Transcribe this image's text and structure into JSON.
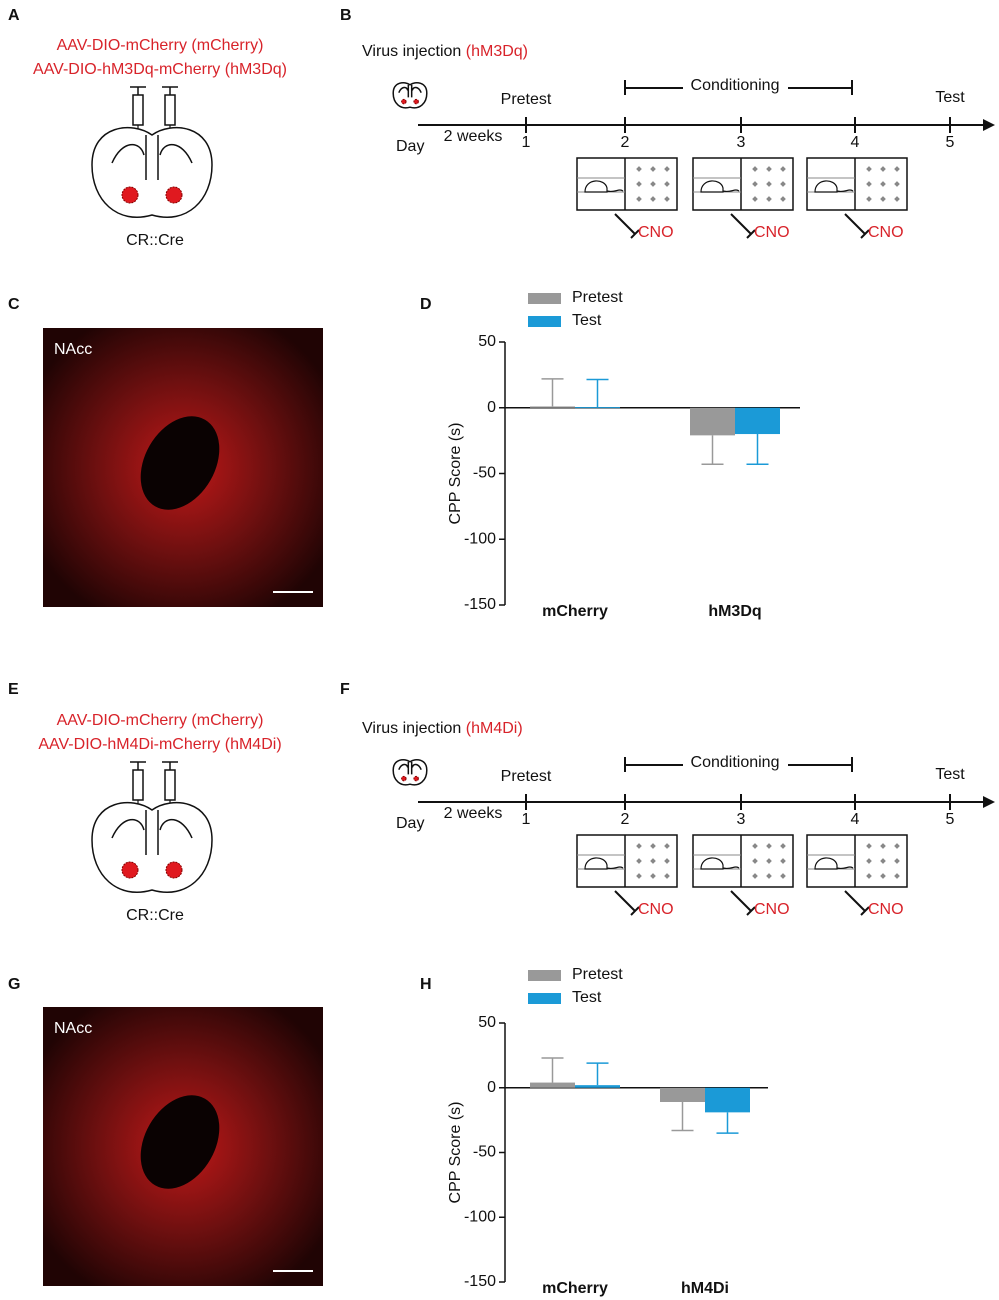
{
  "labels": [
    "A",
    "B",
    "C",
    "D",
    "E",
    "F",
    "G",
    "H"
  ],
  "top": {
    "brain": {
      "lines": [
        "AAV-DIO-mCherry (mCherry)",
        "AAV-DIO-hM3Dq-mCherry (hM3Dq)"
      ],
      "caption": "CR::Cre"
    },
    "timeline": {
      "title": "Virus injection ",
      "virus": "(hM3Dq)",
      "day": "Day",
      "interval": "2 weeks",
      "days": [
        "1",
        "2",
        "3",
        "4",
        "5"
      ],
      "pretest": "Pretest",
      "conditioning": "Conditioning",
      "test": "Test",
      "drug": [
        "CNO",
        "CNO",
        "CNO"
      ]
    },
    "image_label": "NAcc"
  },
  "bottom": {
    "brain": {
      "lines": [
        "AAV-DIO-mCherry (mCherry)",
        "AAV-DIO-hM4Di-mCherry (hM4Di)"
      ],
      "caption": "CR::Cre"
    },
    "timeline": {
      "title": "Virus injection ",
      "virus": "(hM4Di)",
      "day": "Day",
      "interval": "2 weeks",
      "days": [
        "1",
        "2",
        "3",
        "4",
        "5"
      ],
      "pretest": "Pretest",
      "conditioning": "Conditioning",
      "test": "Test",
      "drug": [
        "CNO",
        "CNO",
        "CNO"
      ]
    },
    "image_label": "NAcc"
  },
  "chart_data": [
    {
      "type": "bar",
      "ylabel": "CPP Score (s)",
      "categories": [
        "mCherry",
        "hM3Dq"
      ],
      "series": [
        {
          "name": "Pretest",
          "color": "#999999",
          "values": [
            1,
            -21
          ],
          "errors": [
            21,
            22
          ]
        },
        {
          "name": "Test",
          "color": "#1b9ad7",
          "values": [
            0.5,
            -20
          ],
          "errors": [
            21,
            23
          ]
        }
      ],
      "ylim": [
        -150,
        50
      ],
      "yticks": [
        -150,
        -100,
        -50,
        0,
        50
      ]
    },
    {
      "type": "bar",
      "ylabel": "CPP Score (s)",
      "categories": [
        "mCherry",
        "hM4Di"
      ],
      "series": [
        {
          "name": "Pretest",
          "color": "#999999",
          "values": [
            4,
            -11
          ],
          "errors": [
            19,
            22
          ]
        },
        {
          "name": "Test",
          "color": "#1b9ad7",
          "values": [
            2,
            -19
          ],
          "errors": [
            17,
            16
          ]
        }
      ],
      "ylim": [
        -150,
        50
      ],
      "yticks": [
        -150,
        -100,
        -50,
        0,
        50
      ]
    }
  ]
}
